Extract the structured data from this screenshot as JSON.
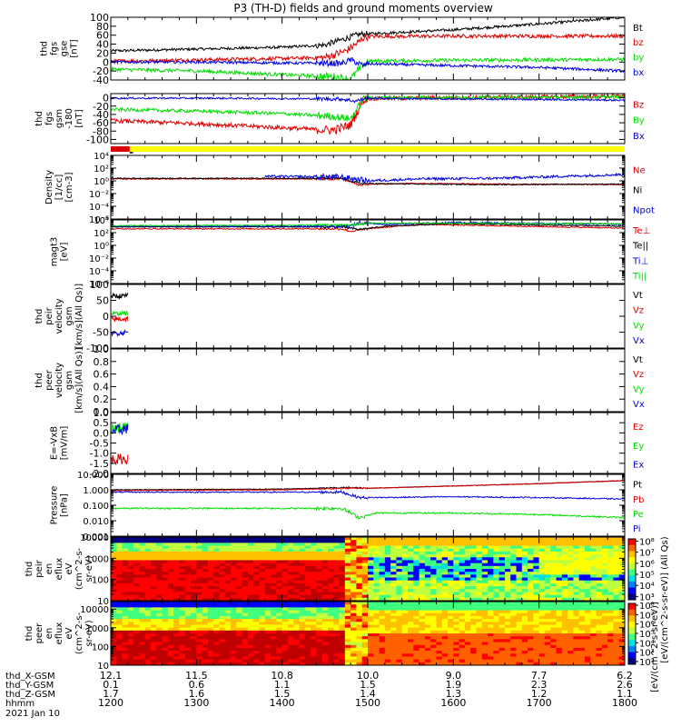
{
  "title": "P3 (TH-D) fields and ground moments overview",
  "colors": {
    "black": "#000000",
    "red": "#e00000",
    "green": "#00dd00",
    "blue": "#0000e0",
    "yellow": "#ffff00",
    "bar_red": "#e00000"
  },
  "chart_data": [
    {
      "type": "line",
      "id": "fgs_gse",
      "ylabel": [
        "thd",
        "fgs",
        "gse",
        "[nT]"
      ],
      "ylim": [
        -40,
        100
      ],
      "yticks": [
        100,
        80,
        60,
        40,
        20,
        0,
        -20,
        -40
      ],
      "series": [
        {
          "name": "Bt",
          "color": "black",
          "points": [
            [
              1200,
              25
            ],
            [
              1300,
              29
            ],
            [
              1400,
              33
            ],
            [
              1450,
              38
            ],
            [
              1470,
              50
            ],
            [
              1490,
              62
            ],
            [
              1500,
              63
            ],
            [
              1600,
              72
            ],
            [
              1700,
              85
            ],
            [
              1800,
              100
            ]
          ],
          "noise": 3
        },
        {
          "name": "bz",
          "color": "red",
          "points": [
            [
              1200,
              2
            ],
            [
              1300,
              5
            ],
            [
              1400,
              8
            ],
            [
              1450,
              10
            ],
            [
              1475,
              25
            ],
            [
              1490,
              45
            ],
            [
              1495,
              55
            ],
            [
              1500,
              57
            ],
            [
              1600,
              58
            ],
            [
              1700,
              58
            ],
            [
              1800,
              58
            ]
          ],
          "noise": 4
        },
        {
          "name": "by",
          "color": "green",
          "points": [
            [
              1200,
              -16
            ],
            [
              1300,
              -20
            ],
            [
              1400,
              -28
            ],
            [
              1460,
              -33
            ],
            [
              1480,
              -38
            ],
            [
              1495,
              -5
            ],
            [
              1500,
              2
            ],
            [
              1600,
              4
            ],
            [
              1700,
              5
            ],
            [
              1800,
              6
            ]
          ],
          "noise": 4
        },
        {
          "name": "bx",
          "color": "blue",
          "points": [
            [
              1200,
              0
            ],
            [
              1300,
              0
            ],
            [
              1400,
              -2
            ],
            [
              1470,
              -3
            ],
            [
              1480,
              5
            ],
            [
              1495,
              -8
            ],
            [
              1500,
              -4
            ],
            [
              1600,
              -8
            ],
            [
              1700,
              -12
            ],
            [
              1800,
              -20
            ]
          ],
          "noise": 3
        }
      ]
    },
    {
      "type": "line",
      "id": "fgs_gsm",
      "ylabel": [
        "thd",
        "fgs",
        "gsm",
        "-180",
        "[nT]"
      ],
      "ylim": [
        -110,
        10
      ],
      "yticks": [
        0,
        -20,
        -40,
        -60,
        -80,
        -100
      ],
      "series": [
        {
          "name": "Bz",
          "color": "red",
          "points": [
            [
              1200,
              -55
            ],
            [
              1300,
              -62
            ],
            [
              1400,
              -72
            ],
            [
              1460,
              -78
            ],
            [
              1480,
              -65
            ],
            [
              1495,
              -5
            ],
            [
              1500,
              -2
            ],
            [
              1600,
              0
            ],
            [
              1700,
              2
            ],
            [
              1800,
              4
            ]
          ],
          "noise": 5
        },
        {
          "name": "By",
          "color": "green",
          "points": [
            [
              1200,
              -28
            ],
            [
              1300,
              -32
            ],
            [
              1400,
              -38
            ],
            [
              1460,
              -45
            ],
            [
              1480,
              -50
            ],
            [
              1495,
              -3
            ],
            [
              1500,
              0
            ],
            [
              1600,
              1
            ],
            [
              1700,
              1
            ],
            [
              1800,
              2
            ]
          ],
          "noise": 4
        },
        {
          "name": "Bx",
          "color": "blue",
          "points": [
            [
              1200,
              -1
            ],
            [
              1300,
              -1
            ],
            [
              1400,
              -2
            ],
            [
              1470,
              -3
            ],
            [
              1485,
              -8
            ],
            [
              1500,
              -1
            ],
            [
              1600,
              -3
            ],
            [
              1700,
              -4
            ],
            [
              1800,
              -6
            ]
          ],
          "noise": 2
        }
      ]
    },
    {
      "type": "line",
      "id": "density",
      "ylabel": [
        "Density",
        "[1/cc]",
        "[cm-3]"
      ],
      "log": true,
      "ylim": [
        -6,
        4
      ],
      "ytick_labels": [
        "10⁴",
        "10²",
        "10⁰",
        "10⁻²",
        "10⁻⁴",
        "10⁻⁶"
      ],
      "ytick_exp": [
        4,
        2,
        0,
        -2,
        -4,
        -6
      ],
      "series": [
        {
          "name": "Ne",
          "color": "red",
          "points": [
            [
              1200,
              0.3
            ],
            [
              1470,
              0.3
            ],
            [
              1490,
              -0.6
            ],
            [
              1550,
              -0.4
            ],
            [
              1650,
              -0.5
            ],
            [
              1800,
              -0.6
            ]
          ],
          "noise": 0.08
        },
        {
          "name": "Ni",
          "color": "black",
          "points": [
            [
              1200,
              0.4
            ],
            [
              1470,
              0.4
            ],
            [
              1490,
              -0.4
            ],
            [
              1550,
              -0.5
            ],
            [
              1650,
              -0.6
            ],
            [
              1800,
              -0.5
            ]
          ],
          "noise": 0.08
        },
        {
          "name": "Npot",
          "color": "blue",
          "points": [
            [
              1380,
              0.7
            ],
            [
              1470,
              0.6
            ],
            [
              1500,
              0.0
            ],
            [
              1560,
              0.3
            ],
            [
              1650,
              0.4
            ],
            [
              1800,
              1.0
            ]
          ],
          "noise": 0.2
        }
      ]
    },
    {
      "type": "line",
      "id": "temperature",
      "ylabel": [
        "magt3",
        "[eV]"
      ],
      "log": true,
      "ylim": [
        -6,
        4
      ],
      "ytick_labels": [
        "10⁴",
        "10²",
        "10⁰",
        "10⁻²",
        "10⁻⁴",
        "10⁻⁶"
      ],
      "ytick_exp": [
        4,
        2,
        0,
        -2,
        -4,
        -6
      ],
      "series": [
        {
          "name": "Te⊥",
          "color": "red",
          "points": [
            [
              1200,
              2.6
            ],
            [
              1470,
              2.6
            ],
            [
              1480,
              2.2
            ],
            [
              1500,
              2.6
            ],
            [
              1560,
              3.3
            ],
            [
              1800,
              2.7
            ]
          ],
          "noise": 0.08
        },
        {
          "name": "Te||",
          "color": "black",
          "points": [
            [
              1200,
              2.9
            ],
            [
              1470,
              2.9
            ],
            [
              1490,
              2.5
            ],
            [
              1520,
              3.0
            ],
            [
              1600,
              3.4
            ],
            [
              1800,
              3.0
            ]
          ],
          "noise": 0.08
        },
        {
          "name": "Ti⊥",
          "color": "blue",
          "points": [
            [
              1200,
              3.0
            ],
            [
              1480,
              3.0
            ],
            [
              1490,
              3.6
            ],
            [
              1520,
              3.3
            ],
            [
              1600,
              3.6
            ],
            [
              1800,
              3.3
            ]
          ],
          "noise": 0.12
        },
        {
          "name": "Ti||",
          "color": "green",
          "points": [
            [
              1200,
              3.1
            ],
            [
              1480,
              3.2
            ],
            [
              1500,
              3.5
            ],
            [
              1800,
              3.4
            ]
          ],
          "noise": 0.08
        }
      ]
    },
    {
      "type": "line",
      "id": "peir_velocity",
      "ylabel": [
        "thd",
        "peir",
        "velocity",
        "gsm",
        "[km/s](All Qs)]"
      ],
      "ylim": [
        -100,
        100
      ],
      "yticks": [
        100,
        50,
        0,
        -50,
        -100
      ],
      "series": [
        {
          "name": "Vt",
          "color": "black",
          "points": [
            [
              1201,
              62
            ],
            [
              1220,
              65
            ]
          ],
          "noise": 8
        },
        {
          "name": "Vz",
          "color": "red",
          "points": [
            [
              1201,
              -10
            ],
            [
              1220,
              -8
            ]
          ],
          "noise": 8
        },
        {
          "name": "Vy",
          "color": "green",
          "points": [
            [
              1201,
              8
            ],
            [
              1220,
              10
            ]
          ],
          "noise": 6
        },
        {
          "name": "Vx",
          "color": "blue",
          "points": [
            [
              1201,
              -55
            ],
            [
              1220,
              -50
            ]
          ],
          "noise": 8
        }
      ]
    },
    {
      "type": "line",
      "id": "peer_velocity",
      "ylabel": [
        "thd",
        "peer",
        "velocity",
        "gsm",
        "[km/s](All Qs)]"
      ],
      "ylim": [
        0,
        1
      ],
      "yticks": [
        1.0,
        0.8,
        0.6,
        0.4,
        0.2,
        0.0
      ],
      "ytick_text": [
        "1.0",
        "0.8",
        "0.6",
        "0.4",
        "0.2",
        "0.0"
      ],
      "series": [
        {
          "name": "Vt",
          "color": "black",
          "points": [],
          "noise": 0
        },
        {
          "name": "Vz",
          "color": "red",
          "points": [],
          "noise": 0
        },
        {
          "name": "Vy",
          "color": "green",
          "points": [],
          "noise": 0
        },
        {
          "name": "Vx",
          "color": "blue",
          "points": [],
          "noise": 0
        }
      ]
    },
    {
      "type": "line",
      "id": "efield",
      "ylabel": [
        "E=-VxB",
        "[mV/m]"
      ],
      "ylim": [
        -2,
        1
      ],
      "yticks": [
        1.0,
        0.5,
        0.0,
        -0.5,
        -1.0,
        -1.5,
        -2.0
      ],
      "ytick_text": [
        "1.0",
        "0.5",
        "0.0",
        "-0.5",
        "-1.0",
        "-1.5",
        "-2.0"
      ],
      "series": [
        {
          "name": "Ez",
          "color": "red",
          "points": [
            [
              1201,
              -1.3
            ],
            [
              1220,
              -1.3
            ]
          ],
          "noise": 0.25
        },
        {
          "name": "Ey",
          "color": "green",
          "points": [
            [
              1201,
              0.2
            ],
            [
              1220,
              0.3
            ]
          ],
          "noise": 0.25
        },
        {
          "name": "Ex",
          "color": "blue",
          "points": [
            [
              1201,
              0.1
            ],
            [
              1220,
              0.2
            ]
          ],
          "noise": 0.25
        }
      ]
    },
    {
      "type": "line",
      "id": "pressure",
      "ylabel": [
        "Pressure",
        "[nPa]"
      ],
      "log": true,
      "ylim": [
        -3,
        1
      ],
      "ytick_labels": [
        "10.000",
        "1.000",
        "0.100",
        "0.010",
        "0.001"
      ],
      "ytick_exp": [
        1,
        0,
        -1,
        -2,
        -3
      ],
      "series": [
        {
          "name": "Pt",
          "color": "black",
          "points": [
            [
              1200,
              0.0
            ],
            [
              1400,
              0.05
            ],
            [
              1480,
              0.15
            ],
            [
              1500,
              0.1
            ],
            [
              1600,
              0.25
            ],
            [
              1700,
              0.4
            ],
            [
              1800,
              0.6
            ]
          ],
          "noise": 0.02
        },
        {
          "name": "Pb",
          "color": "red",
          "points": [
            [
              1200,
              -0.05
            ],
            [
              1400,
              0.0
            ],
            [
              1480,
              0.1
            ],
            [
              1500,
              0.1
            ],
            [
              1600,
              0.25
            ],
            [
              1700,
              0.4
            ],
            [
              1800,
              0.6
            ]
          ],
          "noise": 0.02
        },
        {
          "name": "Pe",
          "color": "green",
          "points": [
            [
              1200,
              -1.2
            ],
            [
              1470,
              -1.2
            ],
            [
              1490,
              -1.8
            ],
            [
              1510,
              -1.5
            ],
            [
              1600,
              -1.5
            ],
            [
              1700,
              -1.6
            ],
            [
              1800,
              -1.8
            ]
          ],
          "noise": 0.05
        },
        {
          "name": "Pi",
          "color": "blue",
          "points": [
            [
              1200,
              -0.15
            ],
            [
              1470,
              -0.15
            ],
            [
              1490,
              -0.5
            ],
            [
              1510,
              -0.5
            ],
            [
              1600,
              -0.45
            ],
            [
              1700,
              -0.5
            ],
            [
              1800,
              -0.6
            ]
          ],
          "noise": 0.04
        }
      ]
    },
    {
      "type": "heatmap",
      "id": "peir_spec",
      "ylabel": [
        "thd",
        "peir",
        "en",
        "eflux",
        "eV",
        "(cm^2-s-",
        "sr-eV)"
      ],
      "log": true,
      "ylim": [
        1,
        4
      ],
      "ytick_labels": [
        "10000",
        "1000",
        "100",
        "10"
      ],
      "ytick_exp": [
        4,
        3,
        2,
        1
      ]
    },
    {
      "type": "heatmap",
      "id": "peer_spec",
      "ylabel": [
        "thd",
        "peer",
        "en",
        "eflux",
        "eV",
        "(cm^2-s-",
        "sr-eV)"
      ],
      "log": true,
      "ylim": [
        1,
        4.4
      ],
      "ytick_labels": [
        "10000",
        "1000",
        "100",
        "10"
      ],
      "ytick_exp": [
        4,
        3,
        2,
        1
      ]
    }
  ],
  "colorbar": {
    "label": "[eV/(cm^2-s-sr-eV)] (All Qs)",
    "label2": "[eV/(cm^2-s-sr-eV)]",
    "top_ticks": [
      "10⁸",
      "10⁷",
      "10⁶",
      "10⁵",
      "10⁴",
      "10³"
    ],
    "bottom_ticks": [
      "10⁸",
      "10⁷",
      "10⁶",
      "10⁵",
      "10⁴",
      "10³",
      "10²"
    ]
  },
  "xaxis": {
    "range": [
      1200,
      1800
    ],
    "rows": [
      {
        "label": "thd_X-GSM",
        "values": [
          "12.1",
          "11.5",
          "10.8",
          "10.0",
          "9.0",
          "7.7",
          "6.2"
        ]
      },
      {
        "label": "thd_Y-GSM",
        "values": [
          "0.1",
          "0.6",
          "1.1",
          "1.5",
          "1.9",
          "2.3",
          "2.6"
        ]
      },
      {
        "label": "thd_Z-GSM",
        "values": [
          "1.7",
          "1.6",
          "1.5",
          "1.4",
          "1.3",
          "1.2",
          "1.1"
        ]
      },
      {
        "label": "hhmm",
        "values": [
          "1200",
          "1300",
          "1400",
          "1500",
          "1600",
          "1700",
          "1800"
        ]
      }
    ],
    "date": "2021 Jan 10"
  }
}
